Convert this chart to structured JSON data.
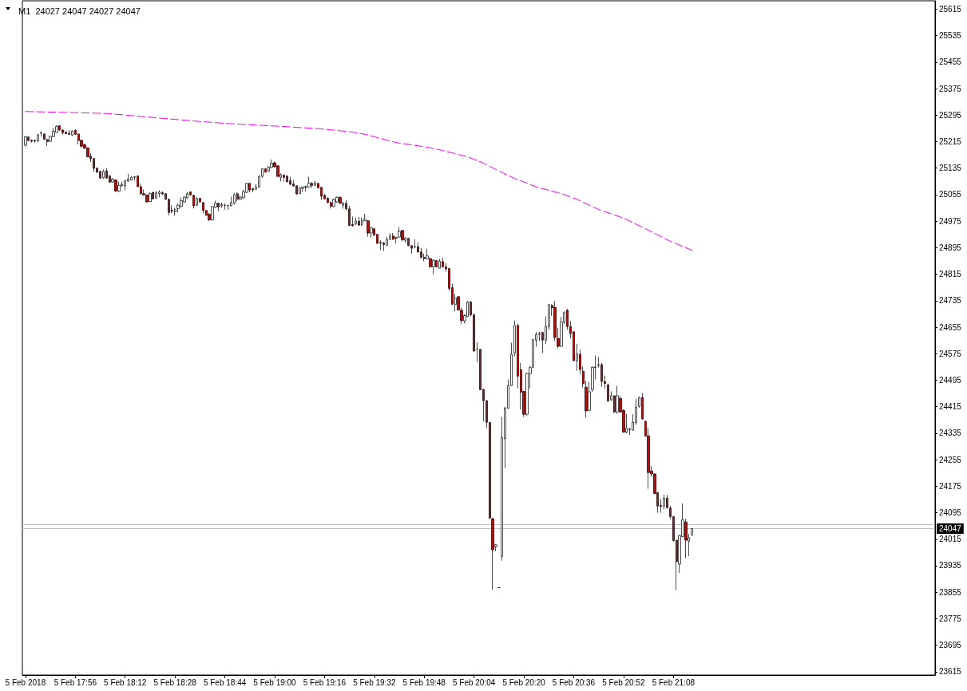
{
  "chart_data": {
    "type": "candlestick",
    "title": "M1  24027 24047 24027 24047",
    "x": [
      "2018-02-05T17:40",
      "2018-02-05T17:41",
      "2018-02-05T17:42",
      "2018-02-05T17:43",
      "2018-02-05T17:44",
      "2018-02-05T17:45",
      "2018-02-05T17:46",
      "2018-02-05T17:47",
      "2018-02-05T17:48",
      "2018-02-05T17:49",
      "2018-02-05T17:50",
      "2018-02-05T17:51",
      "2018-02-05T17:52",
      "2018-02-05T17:53",
      "2018-02-05T17:54",
      "2018-02-05T17:55",
      "2018-02-05T17:56",
      "2018-02-05T17:57",
      "2018-02-05T17:58",
      "2018-02-05T17:59",
      "2018-02-05T18:00",
      "2018-02-05T18:01",
      "2018-02-05T18:02",
      "2018-02-05T18:03",
      "2018-02-05T18:04",
      "2018-02-05T18:05",
      "2018-02-05T18:06",
      "2018-02-05T18:07",
      "2018-02-05T18:08",
      "2018-02-05T18:09",
      "2018-02-05T18:10",
      "2018-02-05T18:11",
      "2018-02-05T18:12",
      "2018-02-05T18:13",
      "2018-02-05T18:14",
      "2018-02-05T18:15",
      "2018-02-05T18:16",
      "2018-02-05T18:17",
      "2018-02-05T18:18",
      "2018-02-05T18:19",
      "2018-02-05T18:20",
      "2018-02-05T18:21",
      "2018-02-05T18:22",
      "2018-02-05T18:23",
      "2018-02-05T18:24",
      "2018-02-05T18:25",
      "2018-02-05T18:26",
      "2018-02-05T18:27",
      "2018-02-05T18:28",
      "2018-02-05T18:29",
      "2018-02-05T18:30",
      "2018-02-05T18:31",
      "2018-02-05T18:32",
      "2018-02-05T18:33",
      "2018-02-05T18:34",
      "2018-02-05T18:35",
      "2018-02-05T18:36",
      "2018-02-05T18:37",
      "2018-02-05T18:38",
      "2018-02-05T18:39",
      "2018-02-05T18:40",
      "2018-02-05T18:41",
      "2018-02-05T18:42",
      "2018-02-05T18:43",
      "2018-02-05T18:44",
      "2018-02-05T18:45",
      "2018-02-05T18:46",
      "2018-02-05T18:47",
      "2018-02-05T18:48",
      "2018-02-05T18:49",
      "2018-02-05T18:50",
      "2018-02-05T18:51",
      "2018-02-05T18:52",
      "2018-02-05T18:53",
      "2018-02-05T18:54",
      "2018-02-05T18:55",
      "2018-02-05T18:56",
      "2018-02-05T18:57",
      "2018-02-05T18:58",
      "2018-02-05T18:59",
      "2018-02-05T19:00",
      "2018-02-05T19:01",
      "2018-02-05T19:02",
      "2018-02-05T19:03",
      "2018-02-05T19:04",
      "2018-02-05T19:05",
      "2018-02-05T19:06",
      "2018-02-05T19:07",
      "2018-02-05T19:08",
      "2018-02-05T19:09",
      "2018-02-05T19:10",
      "2018-02-05T19:11",
      "2018-02-05T19:12",
      "2018-02-05T19:13",
      "2018-02-05T19:14",
      "2018-02-05T19:15",
      "2018-02-05T19:16",
      "2018-02-05T19:17",
      "2018-02-05T19:18",
      "2018-02-05T19:19",
      "2018-02-05T19:20",
      "2018-02-05T19:21",
      "2018-02-05T19:22",
      "2018-02-05T19:23",
      "2018-02-05T19:24",
      "2018-02-05T19:25",
      "2018-02-05T19:26",
      "2018-02-05T19:27",
      "2018-02-05T19:28",
      "2018-02-05T19:29",
      "2018-02-05T19:30",
      "2018-02-05T19:31",
      "2018-02-05T19:32",
      "2018-02-05T19:33",
      "2018-02-05T19:34",
      "2018-02-05T19:35",
      "2018-02-05T19:36",
      "2018-02-05T19:37",
      "2018-02-05T19:38",
      "2018-02-05T19:39",
      "2018-02-05T19:40",
      "2018-02-05T19:41",
      "2018-02-05T19:42",
      "2018-02-05T19:43",
      "2018-02-05T19:44",
      "2018-02-05T19:45",
      "2018-02-05T19:46",
      "2018-02-05T19:47",
      "2018-02-05T19:48",
      "2018-02-05T19:49",
      "2018-02-05T19:50",
      "2018-02-05T19:51",
      "2018-02-05T19:52",
      "2018-02-05T19:53",
      "2018-02-05T19:54",
      "2018-02-05T19:55",
      "2018-02-05T19:56",
      "2018-02-05T19:57",
      "2018-02-05T19:58",
      "2018-02-05T19:59",
      "2018-02-05T20:00",
      "2018-02-05T20:01",
      "2018-02-05T20:02",
      "2018-02-05T20:03",
      "2018-02-05T20:04",
      "2018-02-05T20:05",
      "2018-02-05T20:06",
      "2018-02-05T20:07",
      "2018-02-05T20:08",
      "2018-02-05T20:09",
      "2018-02-05T20:10",
      "2018-02-05T20:11",
      "2018-02-05T20:12",
      "2018-02-05T20:13",
      "2018-02-05T20:14",
      "2018-02-05T20:15",
      "2018-02-05T20:16",
      "2018-02-05T20:17",
      "2018-02-05T20:18",
      "2018-02-05T20:19",
      "2018-02-05T20:20",
      "2018-02-05T20:21",
      "2018-02-05T20:22",
      "2018-02-05T20:23",
      "2018-02-05T20:24",
      "2018-02-05T20:25",
      "2018-02-05T20:26",
      "2018-02-05T20:27",
      "2018-02-05T20:28",
      "2018-02-05T20:29",
      "2018-02-05T20:30",
      "2018-02-05T20:31",
      "2018-02-05T20:32",
      "2018-02-05T20:33",
      "2018-02-05T20:34",
      "2018-02-05T20:35",
      "2018-02-05T20:36",
      "2018-02-05T20:37",
      "2018-02-05T20:38",
      "2018-02-05T20:39",
      "2018-02-05T20:40",
      "2018-02-05T20:41",
      "2018-02-05T20:42",
      "2018-02-05T20:43",
      "2018-02-05T20:44",
      "2018-02-05T20:45",
      "2018-02-05T20:46",
      "2018-02-05T20:47",
      "2018-02-05T20:48",
      "2018-02-05T20:49",
      "2018-02-05T20:50",
      "2018-02-05T20:51",
      "2018-02-05T20:52",
      "2018-02-05T20:53",
      "2018-02-05T20:54",
      "2018-02-05T20:55",
      "2018-02-05T20:56",
      "2018-02-05T20:57",
      "2018-02-05T20:58",
      "2018-02-05T20:59",
      "2018-02-05T21:00",
      "2018-02-05T21:01",
      "2018-02-05T21:02",
      "2018-02-05T21:03",
      "2018-02-05T21:04",
      "2018-02-05T21:05",
      "2018-02-05T21:06",
      "2018-02-05T21:07",
      "2018-02-05T21:08",
      "2018-02-05T21:09",
      "2018-02-05T21:10",
      "2018-02-05T21:11",
      "2018-02-05T21:12",
      "2018-02-05T21:13",
      "2018-02-05T21:14"
    ],
    "ohlc": [
      [
        25204,
        25232,
        25201,
        25230
      ],
      [
        25229,
        25230,
        25216,
        25218
      ],
      [
        25219,
        25221,
        25212,
        25216
      ],
      [
        25219,
        25221,
        25212,
        25217
      ],
      [
        25217,
        25237,
        25214,
        25236
      ],
      [
        25240,
        25246,
        25230,
        25242
      ],
      [
        25238,
        25240,
        25220,
        25222
      ],
      [
        25221,
        25224,
        25201,
        25215
      ],
      [
        25216,
        25233,
        25214,
        25231
      ],
      [
        25230,
        25256,
        25229,
        25246
      ],
      [
        25243,
        25264,
        25242,
        25261
      ],
      [
        25263,
        25265,
        25248,
        25250
      ],
      [
        25250,
        25252,
        25237,
        25242
      ],
      [
        25243,
        25248,
        25237,
        25239
      ],
      [
        25240,
        25250,
        25235,
        25237
      ],
      [
        25235,
        25249,
        25232,
        25247
      ],
      [
        25249,
        25252,
        25235,
        25237
      ],
      [
        25238,
        25240,
        25206,
        25218
      ],
      [
        25219,
        25221,
        25198,
        25201
      ],
      [
        25206,
        25208,
        25193,
        25195
      ],
      [
        25196,
        25197,
        25168,
        25169
      ],
      [
        25171,
        25180,
        25153,
        25163
      ],
      [
        25164,
        25165,
        25124,
        25134
      ],
      [
        25135,
        25136,
        25119,
        25123
      ],
      [
        25125,
        25127,
        25103,
        25105
      ],
      [
        25106,
        25131,
        25103,
        25125
      ],
      [
        25127,
        25134,
        25103,
        25105
      ],
      [
        25111,
        25115,
        25091,
        25093
      ],
      [
        25093,
        25105,
        25091,
        25102
      ],
      [
        25099,
        25101,
        25063,
        25066
      ],
      [
        25065,
        25094,
        25063,
        25083
      ],
      [
        25082,
        25094,
        25079,
        25086
      ],
      [
        25082,
        25099,
        25068,
        25097
      ],
      [
        25096,
        25118,
        25094,
        25102
      ],
      [
        25099,
        25111,
        25098,
        25107
      ],
      [
        25107,
        25111,
        25097,
        25109
      ],
      [
        25111,
        25114,
        25078,
        25079
      ],
      [
        25079,
        25089,
        25055,
        25058
      ],
      [
        25058,
        25070,
        25052,
        25054
      ],
      [
        25054,
        25055,
        25031,
        25033
      ],
      [
        25034,
        25062,
        25033,
        25058
      ],
      [
        25062,
        25063,
        25041,
        25042
      ],
      [
        25045,
        25066,
        25042,
        25060
      ],
      [
        25058,
        25068,
        25047,
        25063
      ],
      [
        25061,
        25065,
        25054,
        25057
      ],
      [
        25058,
        25059,
        25039,
        25041
      ],
      [
        25041,
        25043,
        24992,
        25001
      ],
      [
        25008,
        25023,
        24999,
        25005
      ],
      [
        25003,
        25015,
        24991,
        25010
      ],
      [
        25013,
        25027,
        25001,
        25023
      ],
      [
        25019,
        25047,
        25017,
        25037
      ],
      [
        25033,
        25051,
        25031,
        25047
      ],
      [
        25045,
        25063,
        25044,
        25058
      ],
      [
        25063,
        25065,
        25052,
        25054
      ],
      [
        25053,
        25054,
        25013,
        25021
      ],
      [
        25023,
        25047,
        25021,
        25043
      ],
      [
        25044,
        25045,
        25031,
        25033
      ],
      [
        25031,
        25033,
        24999,
        25007
      ],
      [
        25007,
        25009,
        24991,
        24993
      ],
      [
        24996,
        24999,
        24975,
        24979
      ],
      [
        24979,
        25021,
        24976,
        25019
      ],
      [
        25017,
        25037,
        25015,
        25029
      ],
      [
        25029,
        25031,
        25005,
        25018
      ],
      [
        25021,
        25031,
        25015,
        25025
      ],
      [
        25022,
        25029,
        25010,
        25022
      ],
      [
        25022,
        25023,
        25009,
        25022
      ],
      [
        25021,
        25049,
        25020,
        25031
      ],
      [
        25029,
        25059,
        25025,
        25055
      ],
      [
        25058,
        25062,
        25034,
        25041
      ],
      [
        25041,
        25053,
        25039,
        25047
      ],
      [
        25045,
        25070,
        25044,
        25063
      ],
      [
        25062,
        25090,
        25060,
        25089
      ],
      [
        25089,
        25090,
        25062,
        25069
      ],
      [
        25073,
        25075,
        25063,
        25069
      ],
      [
        25071,
        25087,
        25070,
        25078
      ],
      [
        25078,
        25114,
        25075,
        25109
      ],
      [
        25110,
        25135,
        25106,
        25133
      ],
      [
        25133,
        25135,
        25121,
        25123
      ],
      [
        25126,
        25142,
        25124,
        25138
      ],
      [
        25137,
        25161,
        25135,
        25150
      ],
      [
        25151,
        25155,
        25137,
        25139
      ],
      [
        25142,
        25143,
        25108,
        25110
      ],
      [
        25107,
        25119,
        25095,
        25115
      ],
      [
        25114,
        25116,
        25095,
        25107
      ],
      [
        25111,
        25113,
        25092,
        25094
      ],
      [
        25097,
        25109,
        25084,
        25086
      ],
      [
        25087,
        25099,
        25079,
        25081
      ],
      [
        25082,
        25083,
        25055,
        25057
      ],
      [
        25058,
        25078,
        25057,
        25075
      ],
      [
        25074,
        25079,
        25063,
        25078
      ],
      [
        25077,
        25083,
        25065,
        25079
      ],
      [
        25078,
        25109,
        25076,
        25090
      ],
      [
        25089,
        25093,
        25076,
        25083
      ],
      [
        25083,
        25096,
        25081,
        25090
      ],
      [
        25089,
        25090,
        25073,
        25075
      ],
      [
        25077,
        25078,
        25039,
        25050
      ],
      [
        25053,
        25057,
        25041,
        25042
      ],
      [
        25044,
        25047,
        25029,
        25031
      ],
      [
        25031,
        25034,
        25013,
        25020
      ],
      [
        25019,
        25043,
        25017,
        25041
      ],
      [
        25033,
        25049,
        25031,
        25047
      ],
      [
        25047,
        25049,
        25027,
        25029
      ],
      [
        25023,
        25033,
        25013,
        25029
      ],
      [
        25029,
        25039,
        25007,
        25012
      ],
      [
        25012,
        25021,
        24960,
        24962
      ],
      [
        24965,
        24989,
        24959,
        24961
      ],
      [
        24967,
        24986,
        24963,
        24975
      ],
      [
        24975,
        24988,
        24961,
        24963
      ],
      [
        24965,
        24986,
        24960,
        24976
      ],
      [
        24976,
        24997,
        24975,
        24981
      ],
      [
        24976,
        24978,
        24928,
        24939
      ],
      [
        24939,
        24957,
        24924,
        24955
      ],
      [
        24952,
        24954,
        24930,
        24933
      ],
      [
        24935,
        24936,
        24906,
        24908
      ],
      [
        24911,
        24917,
        24888,
        24909
      ],
      [
        24909,
        24912,
        24885,
        24904
      ],
      [
        24902,
        24927,
        24901,
        24920
      ],
      [
        24920,
        24939,
        24917,
        24930
      ],
      [
        24930,
        24939,
        24919,
        24920
      ],
      [
        24923,
        24928,
        24908,
        24926
      ],
      [
        24927,
        24957,
        24925,
        24944
      ],
      [
        24947,
        24948,
        24914,
        24919
      ],
      [
        24917,
        24927,
        24909,
        24924
      ],
      [
        24923,
        24925,
        24899,
        24901
      ],
      [
        24901,
        24902,
        24877,
        24893
      ],
      [
        24898,
        24920,
        24893,
        24898
      ],
      [
        24898,
        24911,
        24880,
        24882
      ],
      [
        24882,
        24894,
        24862,
        24866
      ],
      [
        24866,
        24877,
        24854,
        24862
      ],
      [
        24861,
        24892,
        24860,
        24870
      ],
      [
        24862,
        24864,
        24835,
        24837
      ],
      [
        24837,
        24860,
        24814,
        24857
      ],
      [
        24856,
        24858,
        24835,
        24837
      ],
      [
        24833,
        24861,
        24832,
        24854
      ],
      [
        24853,
        24865,
        24835,
        24837
      ],
      [
        24837,
        24848,
        24822,
        24831
      ],
      [
        24832,
        24833,
        24764,
        24772
      ],
      [
        24774,
        24786,
        24722,
        24724
      ],
      [
        24724,
        24755,
        24703,
        24742
      ],
      [
        24747,
        24748,
        24706,
        24707
      ],
      [
        24706,
        24714,
        24664,
        24675
      ],
      [
        24674,
        24694,
        24666,
        24690
      ],
      [
        24687,
        24734,
        24686,
        24731
      ],
      [
        24731,
        24734,
        24688,
        24692
      ],
      [
        24692,
        24697,
        24581,
        24583
      ],
      [
        24589,
        24609,
        24549,
        24589
      ],
      [
        24588,
        24589,
        24465,
        24466
      ],
      [
        24467,
        24469,
        24370,
        24433
      ],
      [
        24433,
        24435,
        24351,
        24368
      ],
      [
        24367,
        24368,
        24077,
        24079
      ],
      [
        24077,
        24079,
        23862,
        23983
      ],
      [
        23992,
        24001,
        23979,
        23998
      ],
      [
        23869,
        23869,
        23869,
        23869
      ],
      [
        23963,
        24384,
        23950,
        24322
      ],
      [
        24318,
        24415,
        24229,
        24411
      ],
      [
        24411,
        24497,
        24408,
        24479
      ],
      [
        24479,
        24608,
        24477,
        24573
      ],
      [
        24577,
        24675,
        24567,
        24660
      ],
      [
        24660,
        24666,
        24470,
        24507
      ],
      [
        24527,
        24547,
        24406,
        24459
      ],
      [
        24461,
        24462,
        24384,
        24392
      ],
      [
        24392,
        24517,
        24388,
        24515
      ],
      [
        24515,
        24538,
        24470,
        24533
      ],
      [
        24534,
        24619,
        24533,
        24617
      ],
      [
        24616,
        24641,
        24596,
        24633
      ],
      [
        24633,
        24641,
        24613,
        24636
      ],
      [
        24639,
        24641,
        24577,
        24616
      ],
      [
        24616,
        24687,
        24604,
        24657
      ],
      [
        24657,
        24724,
        24647,
        24723
      ],
      [
        24721,
        24724,
        24689,
        24713
      ],
      [
        24715,
        24734,
        24613,
        24624
      ],
      [
        24621,
        24653,
        24591,
        24597
      ],
      [
        24597,
        24686,
        24596,
        24670
      ],
      [
        24670,
        24703,
        24665,
        24699
      ],
      [
        24706,
        24710,
        24647,
        24657
      ],
      [
        24657,
        24673,
        24621,
        24636
      ],
      [
        24641,
        24642,
        24552,
        24554
      ],
      [
        24554,
        24605,
        24523,
        24574
      ],
      [
        24573,
        24588,
        24513,
        24527
      ],
      [
        24522,
        24536,
        24473,
        24484
      ],
      [
        24474,
        24493,
        24382,
        24402
      ],
      [
        24404,
        24490,
        24402,
        24460
      ],
      [
        24467,
        24537,
        24459,
        24534
      ],
      [
        24533,
        24569,
        24497,
        24535
      ],
      [
        24540,
        24565,
        24533,
        24542
      ],
      [
        24542,
        24547,
        24475,
        24491
      ],
      [
        24491,
        24509,
        24469,
        24485
      ],
      [
        24481,
        24485,
        24430,
        24432
      ],
      [
        24436,
        24461,
        24432,
        24448
      ],
      [
        24448,
        24449,
        24396,
        24399
      ],
      [
        24399,
        24478,
        24394,
        24448
      ],
      [
        24440,
        24448,
        24396,
        24399
      ],
      [
        24404,
        24407,
        24337,
        24338
      ],
      [
        24338,
        24393,
        24335,
        24350
      ],
      [
        24346,
        24351,
        24330,
        24348
      ],
      [
        24344,
        24392,
        24343,
        24368
      ],
      [
        24367,
        24439,
        24360,
        24414
      ],
      [
        24416,
        24445,
        24412,
        24443
      ],
      [
        24443,
        24456,
        24376,
        24378
      ],
      [
        24371,
        24372,
        24325,
        24326
      ],
      [
        24327,
        24350,
        24167,
        24216
      ],
      [
        24221,
        24236,
        24204,
        24212
      ],
      [
        24212,
        24214,
        24151,
        24153
      ],
      [
        24155,
        24157,
        24095,
        24115
      ],
      [
        24117,
        24137,
        24095,
        24114
      ],
      [
        24115,
        24149,
        24105,
        24139
      ],
      [
        24139,
        24149,
        24107,
        24110
      ],
      [
        24109,
        24115,
        24075,
        24083
      ],
      [
        24083,
        24085,
        24008,
        24011
      ],
      [
        24012,
        24013,
        23862,
        23947
      ],
      [
        23940,
        24028,
        23913,
        24026
      ],
      [
        24023,
        24123,
        24021,
        24073
      ],
      [
        24067,
        24077,
        23958,
        24012
      ],
      [
        24009,
        24031,
        23964,
        24019
      ],
      [
        24027,
        24047,
        24027,
        24047
      ]
    ],
    "colors": [
      "#ffffff",
      "#d40000",
      "#d40000",
      "#d40000",
      "#ffffff",
      "#ffffff",
      "#d40000",
      "#d40000",
      "#ffffff",
      "#ffffff",
      "#ffffff",
      "#d40000",
      "#d40000",
      "#d40000",
      "#d40000",
      "#ffffff",
      "#d40000",
      "#d40000",
      "#d40000",
      "#d40000",
      "#d40000",
      "#d40000",
      "#d40000",
      "#d40000",
      "#d40000",
      "#ffffff",
      "#d40000",
      "#d40000",
      "#ffffff",
      "#d40000",
      "#ffffff",
      "#ffffff",
      "#ffffff",
      "#ffffff",
      "#ffffff",
      "#ffffff",
      "#d40000",
      "#d40000",
      "#d40000",
      "#d40000",
      "#ffffff",
      "#d40000",
      "#ffffff",
      "#ffffff",
      "#d40000",
      "#d40000",
      "#d40000",
      "#d40000",
      "#ffffff",
      "#ffffff",
      "#ffffff",
      "#ffffff",
      "#ffffff",
      "#d40000",
      "#d40000",
      "#ffffff",
      "#d40000",
      "#d40000",
      "#d40000",
      "#d40000",
      "#ffffff",
      "#ffffff",
      "#d40000",
      "#ffffff",
      "#000000",
      "#000000",
      "#ffffff",
      "#ffffff",
      "#d40000",
      "#ffffff",
      "#ffffff",
      "#ffffff",
      "#d40000",
      "#d40000",
      "#ffffff",
      "#ffffff",
      "#ffffff",
      "#d40000",
      "#ffffff",
      "#ffffff",
      "#d40000",
      "#d40000",
      "#ffffff",
      "#d40000",
      "#d40000",
      "#d40000",
      "#d40000",
      "#d40000",
      "#ffffff",
      "#ffffff",
      "#ffffff",
      "#ffffff",
      "#d40000",
      "#ffffff",
      "#d40000",
      "#d40000",
      "#d40000",
      "#d40000",
      "#d40000",
      "#ffffff",
      "#ffffff",
      "#d40000",
      "#ffffff",
      "#d40000",
      "#d40000",
      "#d40000",
      "#ffffff",
      "#d40000",
      "#ffffff",
      "#ffffff",
      "#d40000",
      "#ffffff",
      "#d40000",
      "#d40000",
      "#d40000",
      "#d40000",
      "#ffffff",
      "#ffffff",
      "#d40000",
      "#ffffff",
      "#ffffff",
      "#d40000",
      "#ffffff",
      "#d40000",
      "#d40000",
      "#000000",
      "#d40000",
      "#d40000",
      "#d40000",
      "#ffffff",
      "#d40000",
      "#ffffff",
      "#d40000",
      "#ffffff",
      "#d40000",
      "#d40000",
      "#d40000",
      "#d40000",
      "#ffffff",
      "#d40000",
      "#d40000",
      "#ffffff",
      "#ffffff",
      "#d40000",
      "#d40000",
      "#000000",
      "#d40000",
      "#d40000",
      "#d40000",
      "#d40000",
      "#d40000",
      "#ffffff",
      "#000000",
      "#ffffff",
      "#ffffff",
      "#ffffff",
      "#ffffff",
      "#ffffff",
      "#d40000",
      "#d40000",
      "#d40000",
      "#ffffff",
      "#ffffff",
      "#ffffff",
      "#ffffff",
      "#ffffff",
      "#d40000",
      "#ffffff",
      "#ffffff",
      "#d40000",
      "#d40000",
      "#d40000",
      "#ffffff",
      "#ffffff",
      "#d40000",
      "#d40000",
      "#d40000",
      "#ffffff",
      "#d40000",
      "#d40000",
      "#d40000",
      "#ffffff",
      "#ffffff",
      "#ffffff",
      "#ffffff",
      "#d40000",
      "#d40000",
      "#d40000",
      "#ffffff",
      "#d40000",
      "#ffffff",
      "#d40000",
      "#d40000",
      "#ffffff",
      "#ffffff",
      "#ffffff",
      "#ffffff",
      "#ffffff",
      "#d40000",
      "#d40000",
      "#d40000",
      "#d40000",
      "#d40000",
      "#d40000",
      "#d40000",
      "#ffffff",
      "#d40000",
      "#d40000",
      "#d40000",
      "#d40000",
      "#ffffff",
      "#ffffff",
      "#d40000",
      "#ffffff",
      "#ffffff"
    ],
    "series": [
      {
        "type": "line",
        "color": "#ff00ff",
        "line_style": "dashed",
        "x": [
          "2018-02-05T17:40",
          "2018-02-05T17:53",
          "2018-02-05T18:06",
          "2018-02-05T18:17",
          "2018-02-05T18:33",
          "2018-02-05T18:44",
          "2018-02-05T18:54",
          "2018-02-05T19:04",
          "2018-02-05T19:14",
          "2018-02-05T19:24",
          "2018-02-05T19:29",
          "2018-02-05T19:39",
          "2018-02-05T19:49",
          "2018-02-05T19:54",
          "2018-02-05T20:02",
          "2018-02-05T20:07",
          "2018-02-05T20:12",
          "2018-02-05T20:17",
          "2018-02-05T20:24",
          "2018-02-05T20:32",
          "2018-02-05T20:37",
          "2018-02-05T20:44",
          "2018-02-05T20:52",
          "2018-02-05T20:59",
          "2018-02-05T21:07",
          "2018-02-05T21:14"
        ],
        "values": [
          25306,
          25303,
          25300,
          25291,
          25278,
          25270,
          25265,
          25260,
          25254,
          25245,
          25237,
          25212,
          25198,
          25188,
          25169,
          25150,
          25126,
          25104,
          25078,
          25058,
          25041,
          25010,
          24984,
          24952,
          24914,
          24887
        ]
      }
    ],
    "xlim": [
      "2018-02-05T17:39",
      "2018-02-05T22:32"
    ],
    "xticks": [
      {
        "value": "2018-02-05T17:40",
        "label": "5 Feb 2018"
      },
      {
        "value": "2018-02-05T17:56",
        "label": "5 Feb 17:56"
      },
      {
        "value": "2018-02-05T18:12",
        "label": "5 Feb 18:12"
      },
      {
        "value": "2018-02-05T18:28",
        "label": "5 Feb 18:28"
      },
      {
        "value": "2018-02-05T18:44",
        "label": "5 Feb 18:44"
      },
      {
        "value": "2018-02-05T19:00",
        "label": "5 Feb 19:00"
      },
      {
        "value": "2018-02-05T19:16",
        "label": "5 Feb 19:16"
      },
      {
        "value": "2018-02-05T19:32",
        "label": "5 Feb 19:32"
      },
      {
        "value": "2018-02-05T19:48",
        "label": "5 Feb 19:48"
      },
      {
        "value": "2018-02-05T20:04",
        "label": "5 Feb 20:04"
      },
      {
        "value": "2018-02-05T20:20",
        "label": "5 Feb 20:20"
      },
      {
        "value": "2018-02-05T20:36",
        "label": "5 Feb 20:36"
      },
      {
        "value": "2018-02-05T20:52",
        "label": "5 Feb 20:52"
      },
      {
        "value": "2018-02-05T21:08",
        "label": "5 Feb 21:08"
      }
    ],
    "ylim": [
      23605,
      25640
    ],
    "yticks": [
      23615,
      23695,
      23775,
      23855,
      23935,
      24015,
      24095,
      24175,
      24255,
      24335,
      24415,
      24495,
      24575,
      24655,
      24735,
      24815,
      24895,
      24975,
      25055,
      25135,
      25215,
      25295,
      25375,
      25455,
      25535,
      25615
    ],
    "ref_lines": [
      {
        "axis": "y",
        "value": 24059,
        "color": "#c0c0c0"
      },
      {
        "axis": "y",
        "value": 24047,
        "label": "24047",
        "color": "#c0c0c0"
      }
    ]
  }
}
